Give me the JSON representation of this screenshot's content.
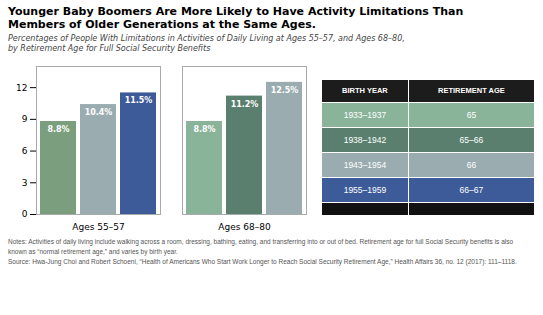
{
  "chart_data": {
    "type": "bar",
    "title": [
      "Younger Baby Boomers Are More Likely to Have Activity Limitations Than",
      "Members of Older Generations at the Same Ages."
    ],
    "subtitle": [
      "Percentages of People With Limitations in Activities of Daily Living at Ages 55–57, and Ages 68–80,",
      "by Retirement Age for Full Social Security Benefits"
    ],
    "categories": [
      "Ages 55–57",
      "Ages 68–80"
    ],
    "series": [
      {
        "values": [
          8.8,
          8.8
        ],
        "value_labels": [
          "8.8%",
          "8.8%"
        ],
        "colors": [
          "#7a9e7e",
          "#8ab49a"
        ]
      },
      {
        "values": [
          10.4,
          11.2
        ],
        "value_labels": [
          "10.4%",
          "11.2%"
        ],
        "colors": [
          "#9aacb0",
          "#5a7f6e"
        ]
      },
      {
        "values": [
          11.5,
          12.5
        ],
        "value_labels": [
          "11.5%",
          "12.5%"
        ],
        "colors": [
          "#3d5a99",
          "#9aacb0"
        ]
      }
    ],
    "ylim": [
      0,
      14
    ],
    "yticks": [
      0,
      3,
      6,
      9,
      12
    ],
    "grid": false,
    "data_labels": true,
    "table": {
      "columns": [
        "BIRTH YEAR",
        "RETIREMENT AGE"
      ],
      "rows": [
        [
          "1933–1937",
          "65"
        ],
        [
          "1938–1942",
          "65–66"
        ],
        [
          "1943–1954",
          "66"
        ],
        [
          "1955–1959",
          "66–67"
        ]
      ],
      "colors": [
        "#8ab49a",
        "#5a7f6e",
        "#9aacb0",
        "#3d5a99"
      ]
    },
    "notes": [
      "Notes: Activities of daily living include walking across a room, dressing, bathing, eating, and transferring into or out of bed. Retirement age for full Social Security benefits is also",
      "known as “normal retirement age,” and varies by birth year.",
      "Source: Hwa-Jung Choi and Robert Schoeni, “Health of Americans Who Start Work Longer to Reach Social Security Retirement Age,” Health Affairs 36, no. 12 (2017): 111–1118."
    ]
  }
}
